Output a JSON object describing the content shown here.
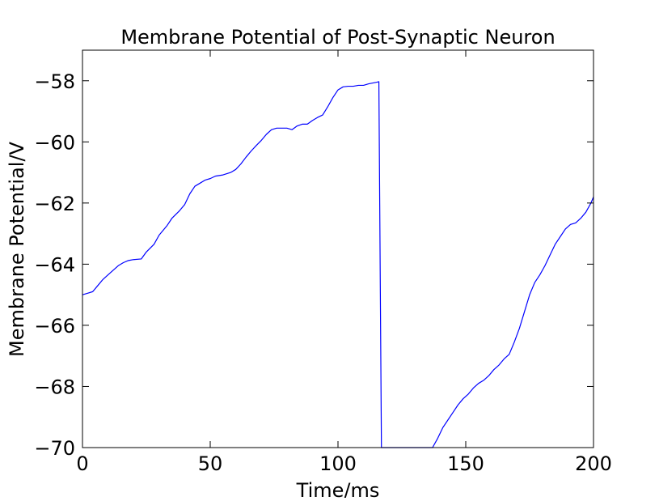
{
  "chart_data": {
    "type": "line",
    "title": "Membrane Potential of Post-Synaptic Neuron",
    "xlabel": "Time/ms",
    "ylabel": "Membrane Potential/V",
    "xlim": [
      0,
      200
    ],
    "ylim": [
      -70,
      -57
    ],
    "xticks": [
      0,
      50,
      100,
      150,
      200
    ],
    "xtick_labels": [
      "0",
      "50",
      "100",
      "150",
      "200"
    ],
    "yticks": [
      -70,
      -68,
      -66,
      -64,
      -62,
      -60,
      -58
    ],
    "ytick_labels": [
      "−70",
      "−68",
      "−66",
      "−64",
      "−62",
      "−60",
      "−58"
    ],
    "grid": false,
    "line_color": "#0000ff",
    "series": [
      {
        "x": [
          0,
          2,
          4,
          6,
          8,
          10,
          12,
          14,
          16,
          18,
          20,
          23,
          25,
          28,
          30,
          33,
          35,
          38,
          40,
          42,
          44,
          46,
          48,
          50,
          52,
          55,
          58,
          60,
          62,
          64,
          66,
          68,
          70,
          72,
          74,
          76,
          78,
          80,
          82,
          84,
          86,
          88,
          90,
          92,
          94,
          96,
          98,
          100,
          102,
          104,
          106,
          108,
          110,
          112,
          115,
          116,
          117,
          120,
          125,
          130,
          134,
          137,
          139,
          141,
          143,
          145,
          147,
          149,
          151,
          153,
          155,
          157,
          159,
          161,
          163,
          165,
          167,
          169,
          171,
          173,
          175,
          177,
          179,
          181,
          183,
          185,
          187,
          189,
          191,
          193,
          195,
          197,
          199,
          200
        ],
        "y": [
          -65.0,
          -64.95,
          -64.9,
          -64.7,
          -64.5,
          -64.35,
          -64.2,
          -64.05,
          -63.95,
          -63.88,
          -63.85,
          -63.83,
          -63.6,
          -63.35,
          -63.05,
          -62.75,
          -62.5,
          -62.25,
          -62.05,
          -61.7,
          -61.45,
          -61.35,
          -61.25,
          -61.2,
          -61.12,
          -61.08,
          -61.0,
          -60.9,
          -60.72,
          -60.5,
          -60.3,
          -60.12,
          -59.95,
          -59.75,
          -59.6,
          -59.55,
          -59.55,
          -59.55,
          -59.6,
          -59.48,
          -59.42,
          -59.42,
          -59.3,
          -59.2,
          -59.12,
          -58.85,
          -58.55,
          -58.3,
          -58.2,
          -58.18,
          -58.18,
          -58.15,
          -58.15,
          -58.1,
          -58.05,
          -58.03,
          -70.0,
          -70.0,
          -70.0,
          -70.0,
          -70.0,
          -70.0,
          -69.7,
          -69.35,
          -69.1,
          -68.85,
          -68.6,
          -68.4,
          -68.25,
          -68.05,
          -67.9,
          -67.8,
          -67.65,
          -67.45,
          -67.3,
          -67.1,
          -66.95,
          -66.55,
          -66.1,
          -65.55,
          -65.0,
          -64.6,
          -64.35,
          -64.05,
          -63.7,
          -63.35,
          -63.1,
          -62.85,
          -62.7,
          -62.65,
          -62.5,
          -62.3,
          -62.0,
          -61.8
        ]
      }
    ]
  }
}
